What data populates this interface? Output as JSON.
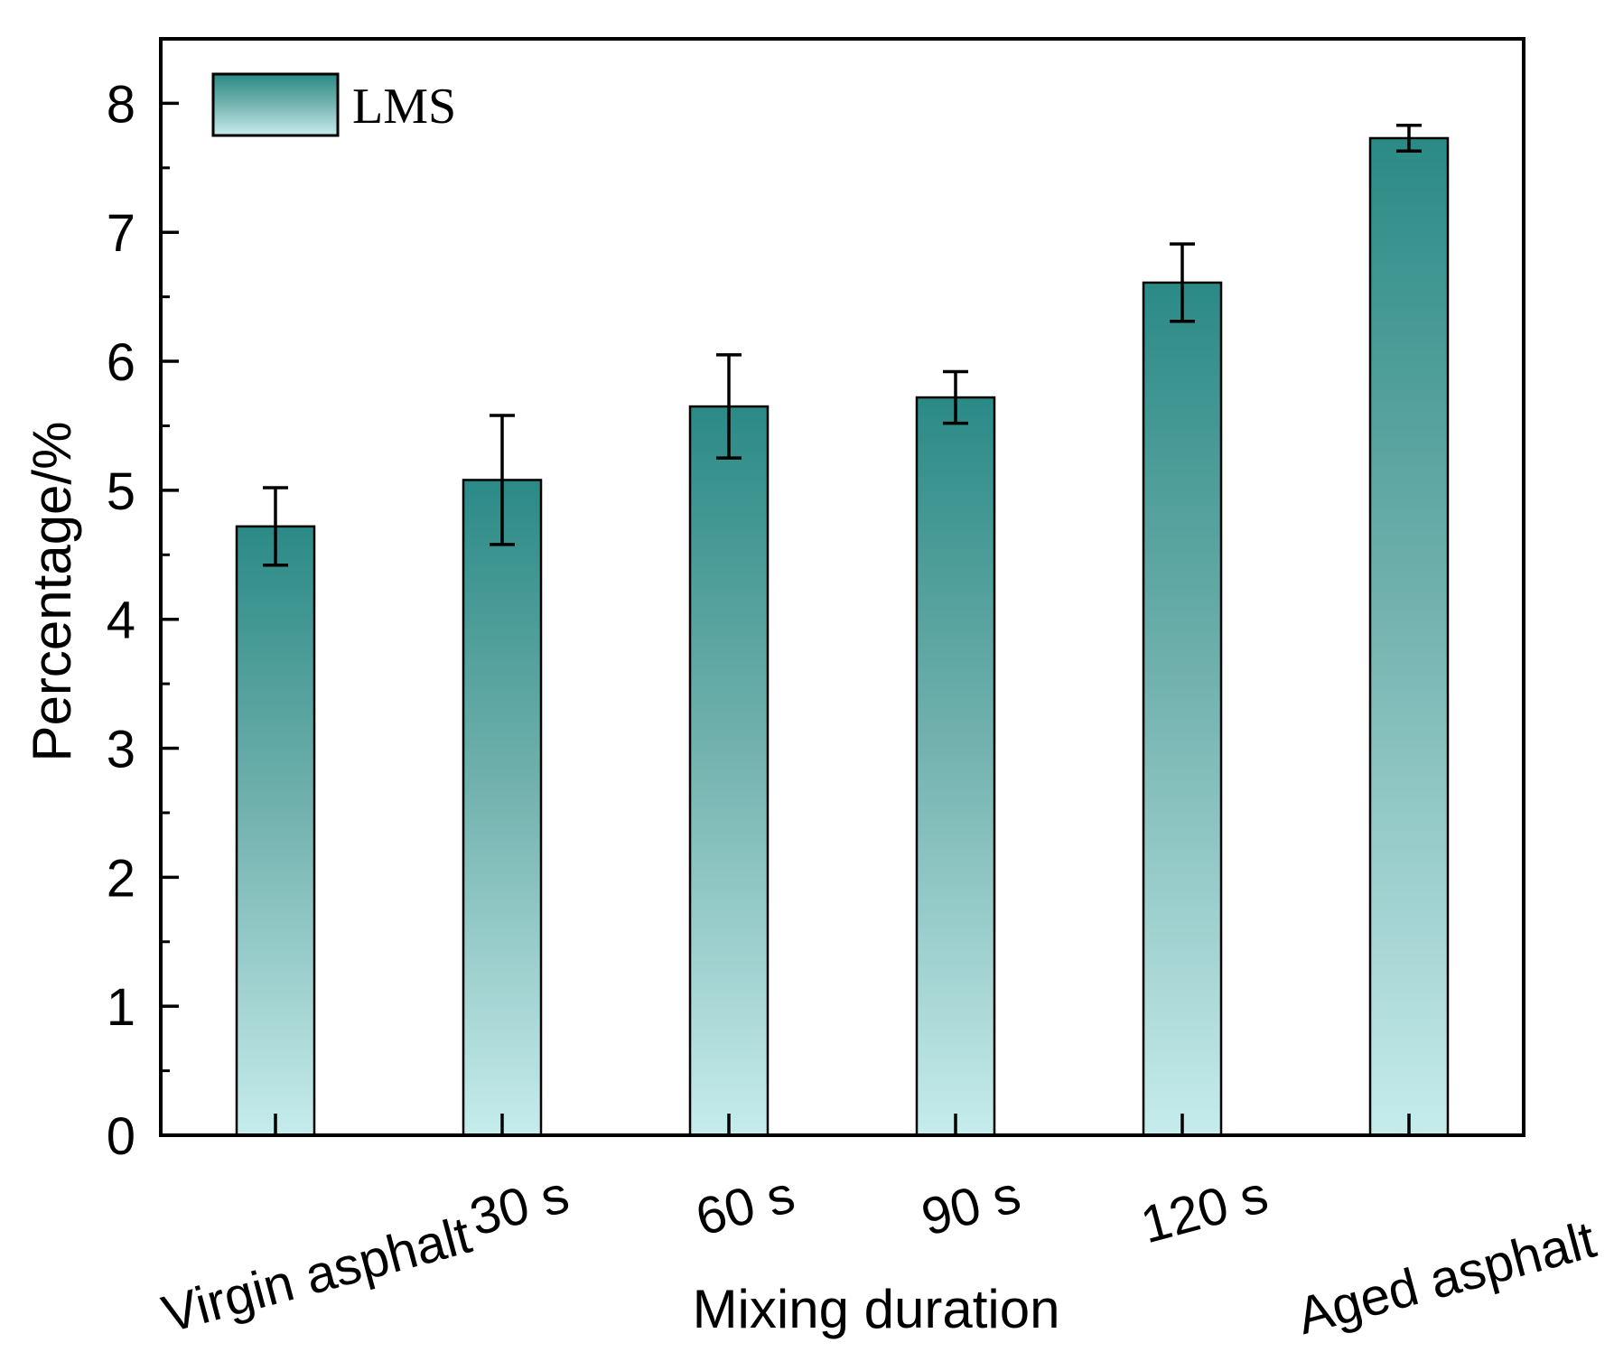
{
  "chart_data": {
    "type": "bar",
    "title": "",
    "xlabel": "Mixing duration",
    "ylabel": "Percentage/%",
    "categories": [
      "Virgin asphalt",
      "30 s",
      "60 s",
      "90 s",
      "120 s",
      "Aged asphalt"
    ],
    "series": [
      {
        "name": "LMS",
        "values": [
          4.72,
          5.08,
          5.65,
          5.72,
          6.61,
          7.73
        ],
        "errors": [
          0.3,
          0.5,
          0.4,
          0.2,
          0.3,
          0.1
        ]
      }
    ],
    "ylim": [
      0,
      8.5
    ],
    "yticks": [
      0,
      1,
      2,
      3,
      4,
      5,
      6,
      7,
      8
    ],
    "legend_position": "top-left",
    "grid": false,
    "colors": {
      "bar_top": "#2b8a86",
      "bar_bottom": "#c6ecec",
      "axis": "#000000"
    }
  }
}
